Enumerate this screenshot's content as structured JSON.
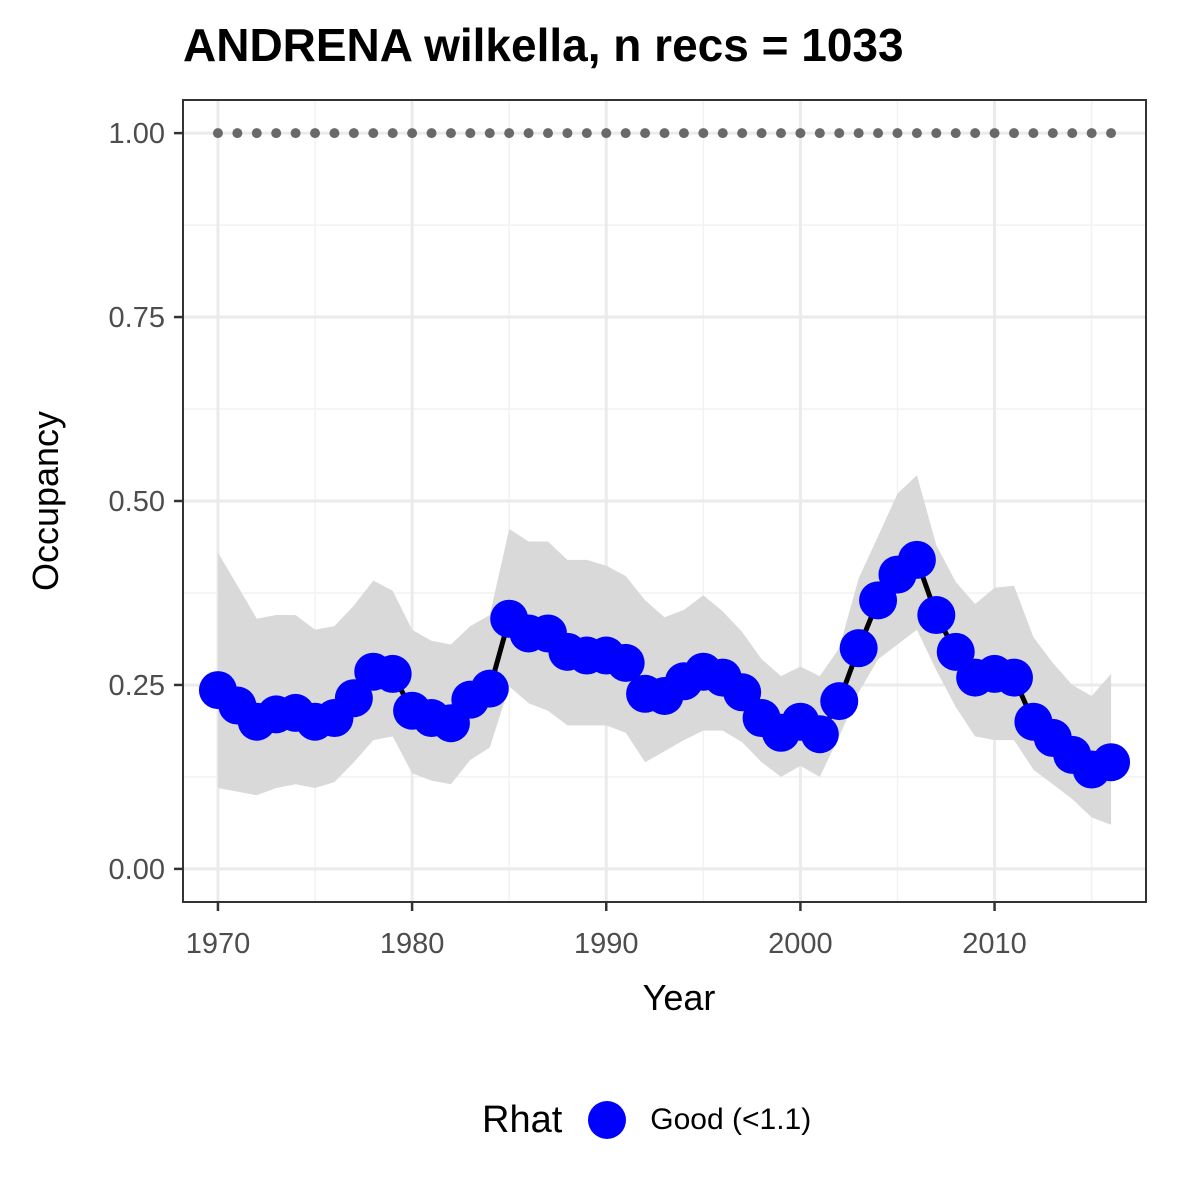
{
  "chart_data": {
    "type": "line",
    "title": "ANDRENA wilkella, n recs = 1033",
    "xlabel": "Year",
    "ylabel": "Occupancy",
    "xlim": [
      1968.2,
      2017.8
    ],
    "ylim": [
      -0.045,
      1.045
    ],
    "xticks": [
      1970,
      1980,
      1990,
      2000,
      2010
    ],
    "yticks": [
      0.0,
      0.25,
      0.5,
      0.75,
      1.0
    ],
    "ytick_labels": [
      "0.00",
      "0.25",
      "0.50",
      "0.75",
      "1.00"
    ],
    "grid": true,
    "legend": {
      "title": "Rhat",
      "position": "bottom",
      "entries": [
        {
          "label": "Good (<1.1)",
          "color": "#0000ff"
        }
      ]
    },
    "colors": {
      "points": "#0000ff",
      "line": "#000000",
      "ribbon": "#d9d9d9",
      "reference": "#696969"
    },
    "x": [
      1970,
      1971,
      1972,
      1973,
      1974,
      1975,
      1976,
      1977,
      1978,
      1979,
      1980,
      1981,
      1982,
      1983,
      1984,
      1985,
      1986,
      1987,
      1988,
      1989,
      1990,
      1991,
      1992,
      1993,
      1994,
      1995,
      1996,
      1997,
      1998,
      1999,
      2000,
      2001,
      2002,
      2003,
      2004,
      2005,
      2006,
      2007,
      2008,
      2009,
      2010,
      2011,
      2012,
      2013,
      2014,
      2015,
      2016
    ],
    "series": [
      {
        "name": "Occupancy",
        "values": [
          0.243,
          0.222,
          0.2,
          0.21,
          0.212,
          0.2,
          0.205,
          0.232,
          0.268,
          0.265,
          0.215,
          0.205,
          0.198,
          0.23,
          0.245,
          0.34,
          0.32,
          0.32,
          0.295,
          0.29,
          0.29,
          0.28,
          0.238,
          0.235,
          0.255,
          0.268,
          0.26,
          0.24,
          0.205,
          0.185,
          0.2,
          0.183,
          0.228,
          0.3,
          0.365,
          0.4,
          0.42,
          0.345,
          0.295,
          0.26,
          0.265,
          0.26,
          0.2,
          0.178,
          0.155,
          0.135,
          0.145
        ]
      },
      {
        "name": "Lower CI",
        "values": [
          0.11,
          0.105,
          0.1,
          0.11,
          0.115,
          0.11,
          0.118,
          0.145,
          0.175,
          0.18,
          0.13,
          0.12,
          0.115,
          0.148,
          0.165,
          0.248,
          0.225,
          0.215,
          0.195,
          0.195,
          0.195,
          0.185,
          0.145,
          0.16,
          0.175,
          0.188,
          0.188,
          0.172,
          0.145,
          0.125,
          0.14,
          0.125,
          0.18,
          0.24,
          0.285,
          0.305,
          0.325,
          0.27,
          0.22,
          0.18,
          0.175,
          0.175,
          0.135,
          0.115,
          0.095,
          0.07,
          0.06
        ]
      },
      {
        "name": "Upper CI",
        "values": [
          0.43,
          0.385,
          0.34,
          0.345,
          0.345,
          0.325,
          0.33,
          0.358,
          0.392,
          0.378,
          0.325,
          0.31,
          0.305,
          0.33,
          0.345,
          0.462,
          0.445,
          0.445,
          0.42,
          0.42,
          0.412,
          0.398,
          0.365,
          0.342,
          0.352,
          0.372,
          0.35,
          0.322,
          0.285,
          0.262,
          0.275,
          0.262,
          0.3,
          0.395,
          0.452,
          0.51,
          0.535,
          0.44,
          0.39,
          0.36,
          0.382,
          0.385,
          0.315,
          0.28,
          0.25,
          0.235,
          0.265
        ]
      },
      {
        "name": "Reference (1.00)",
        "values": [
          1,
          1,
          1,
          1,
          1,
          1,
          1,
          1,
          1,
          1,
          1,
          1,
          1,
          1,
          1,
          1,
          1,
          1,
          1,
          1,
          1,
          1,
          1,
          1,
          1,
          1,
          1,
          1,
          1,
          1,
          1,
          1,
          1,
          1,
          1,
          1,
          1,
          1,
          1,
          1,
          1,
          1,
          1,
          1,
          1,
          1,
          1
        ]
      }
    ]
  }
}
